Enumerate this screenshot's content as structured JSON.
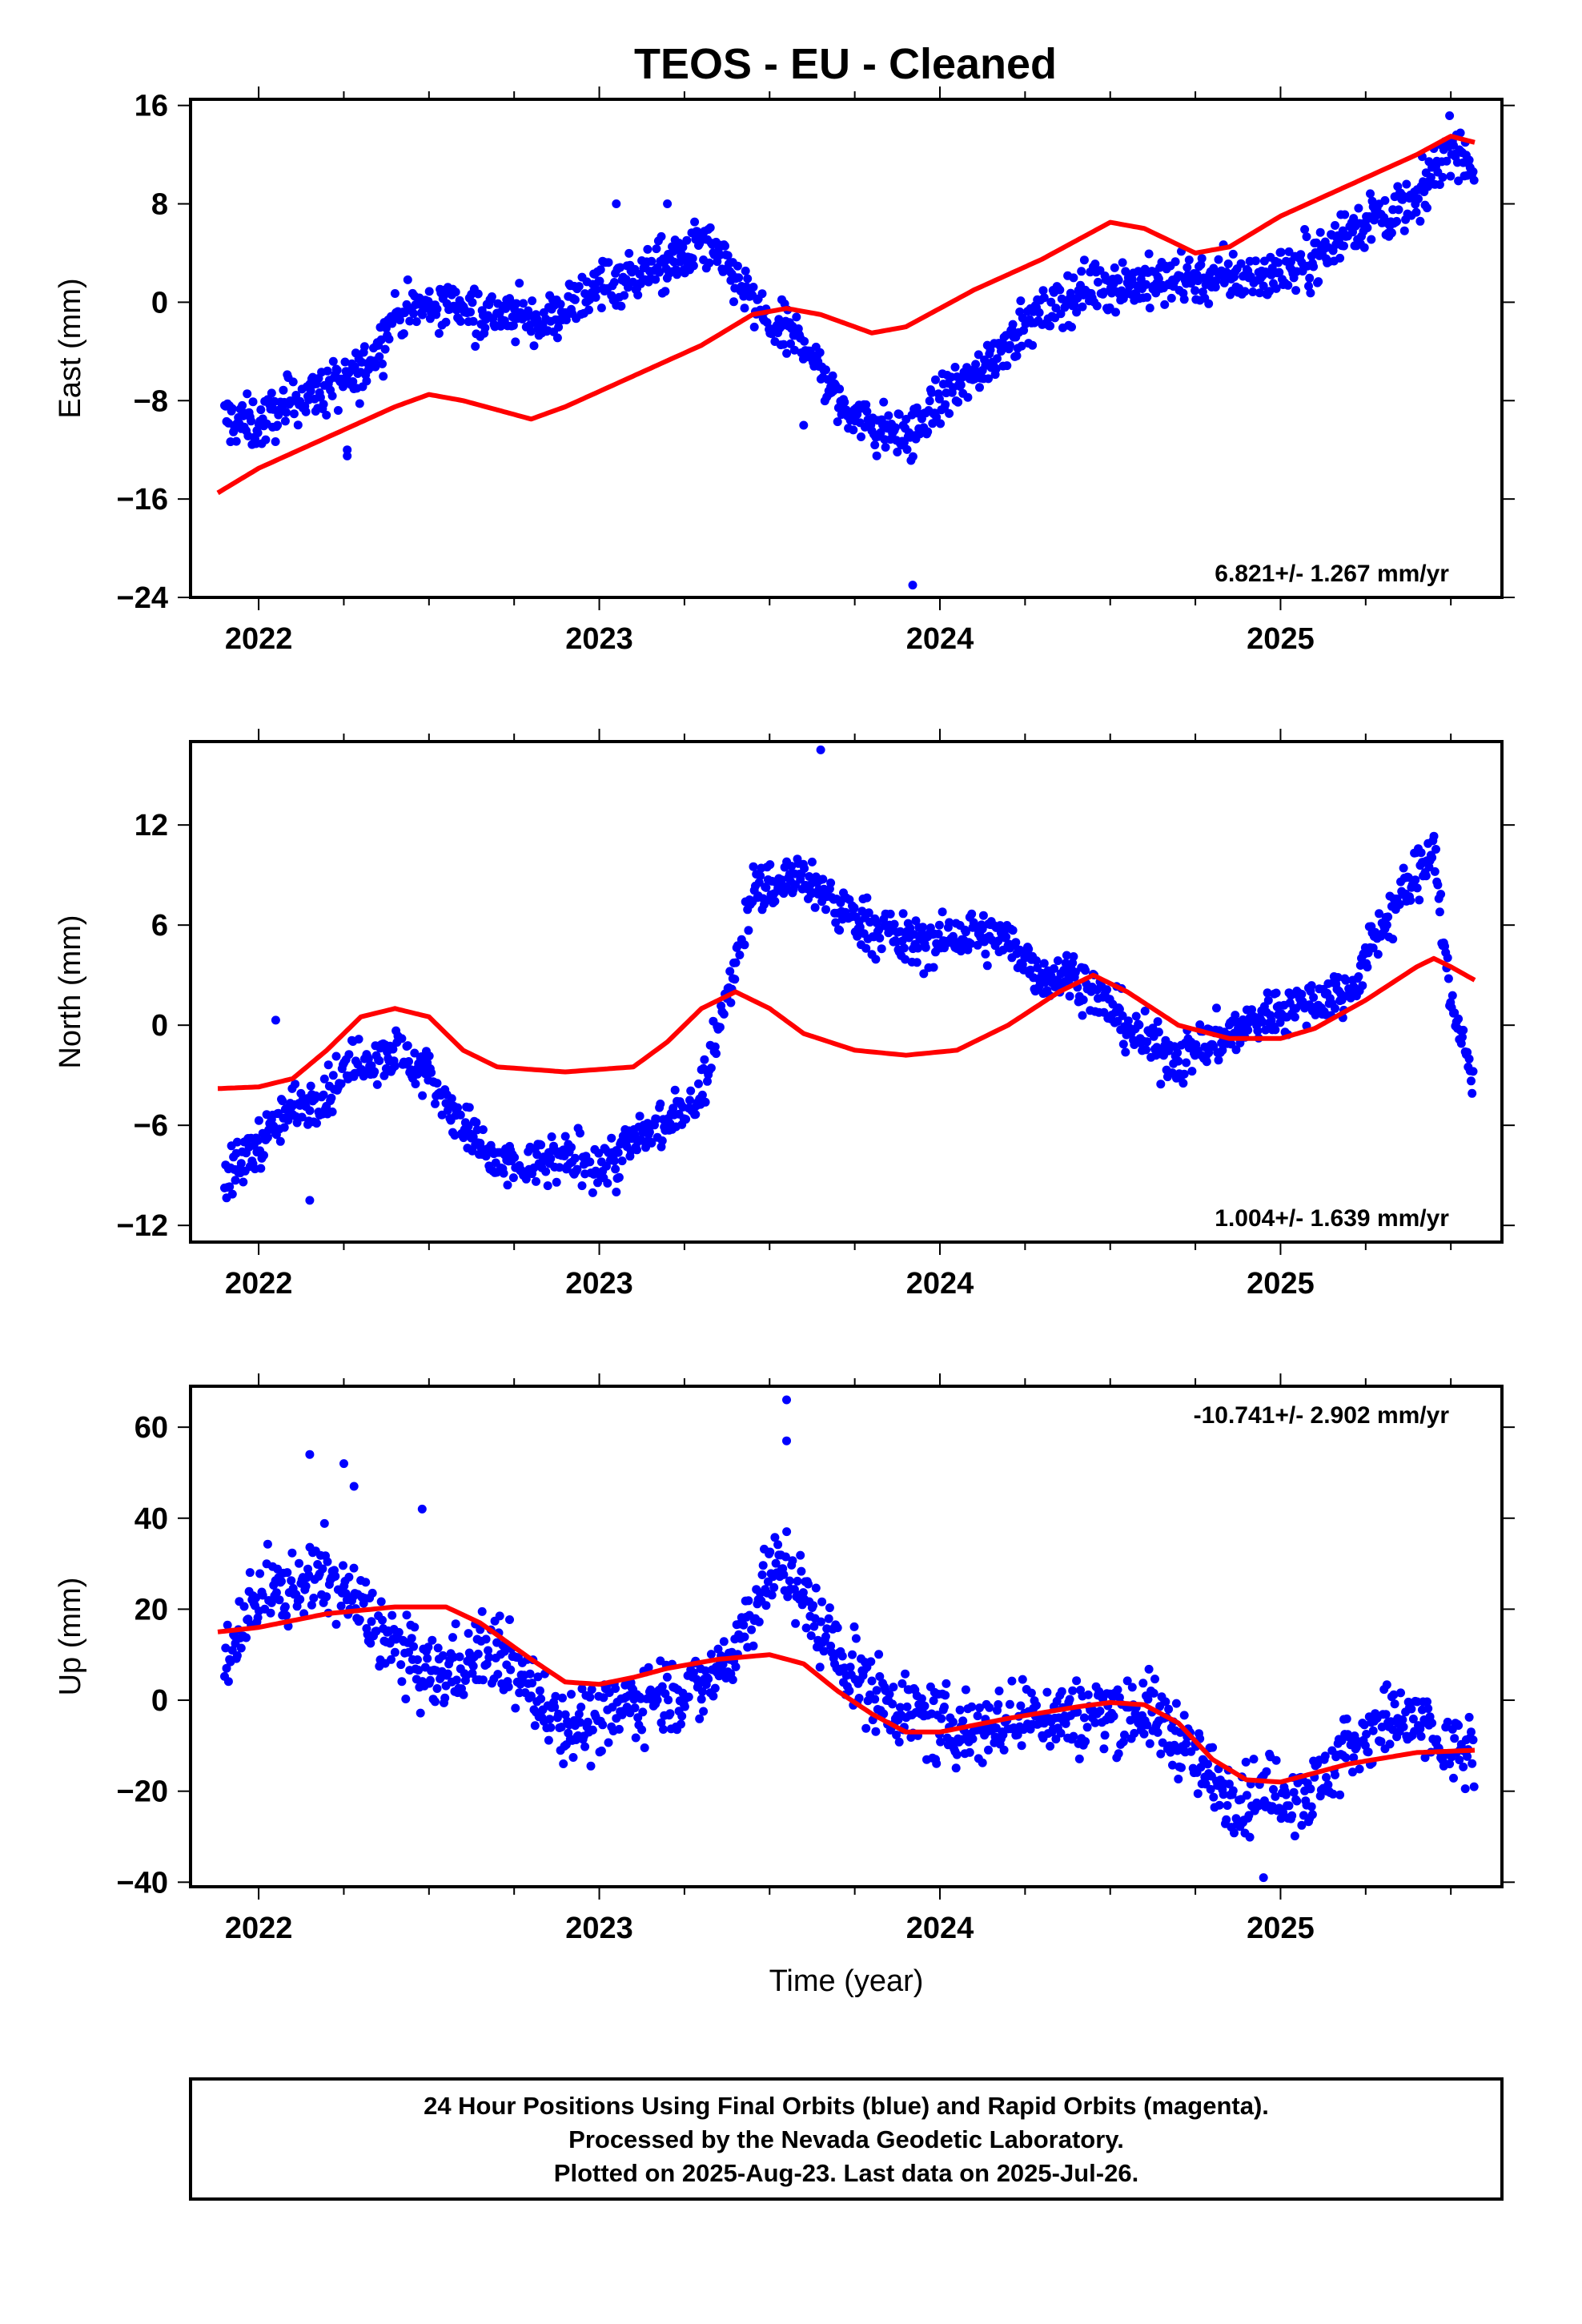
{
  "title": "TEOS  - EU - Cleaned",
  "footer": {
    "lines": [
      "24 Hour Positions Using Final Orbits (blue) and Rapid Orbits (magenta).",
      "Processed by the Nevada Geodetic Laboratory.",
      "Plotted on 2025-Aug-23. Last data on 2025-Jul-26."
    ]
  },
  "colors": {
    "points": "#0000ff",
    "fit": "#ff0000",
    "frame": "#000000"
  },
  "chart_data": [
    {
      "type": "scatter",
      "ylabel": "East (mm)",
      "xlabel": "",
      "xlim": [
        2021.8,
        2025.65
      ],
      "ylim": [
        -24,
        16.5
      ],
      "xticks": [
        2022,
        2023,
        2024,
        2025
      ],
      "xtick_labels": [
        "2022",
        "2023",
        "2024",
        "2025"
      ],
      "yticks": [
        -24,
        -16,
        -8,
        0,
        8,
        16
      ],
      "ytick_labels": [
        "−24",
        "−16",
        "−8",
        "0",
        "8",
        "16"
      ],
      "rate_text": "6.821+/- 1.267 mm/yr",
      "rate_position": "bottom-right",
      "points_trend": [
        [
          2021.9,
          -9.5
        ],
        [
          2022.0,
          -10
        ],
        [
          2022.1,
          -8
        ],
        [
          2022.2,
          -7
        ],
        [
          2022.3,
          -6
        ],
        [
          2022.4,
          -1
        ],
        [
          2022.55,
          0
        ],
        [
          2022.7,
          -1
        ],
        [
          2022.85,
          -1.5
        ],
        [
          2023.0,
          1.5
        ],
        [
          2023.15,
          2.5
        ],
        [
          2023.25,
          3.5
        ],
        [
          2023.3,
          5
        ],
        [
          2023.4,
          2
        ],
        [
          2023.5,
          -2
        ],
        [
          2023.6,
          -3
        ],
        [
          2023.7,
          -8
        ],
        [
          2023.8,
          -10
        ],
        [
          2023.9,
          -11
        ],
        [
          2024.0,
          -8
        ],
        [
          2024.1,
          -6
        ],
        [
          2024.2,
          -3
        ],
        [
          2024.3,
          -1
        ],
        [
          2024.45,
          1.5
        ],
        [
          2024.6,
          1.5
        ],
        [
          2024.75,
          2
        ],
        [
          2024.9,
          2
        ],
        [
          2025.0,
          2.5
        ],
        [
          2025.1,
          3.5
        ],
        [
          2025.2,
          6
        ],
        [
          2025.3,
          7
        ],
        [
          2025.4,
          8
        ],
        [
          2025.5,
          13
        ],
        [
          2025.57,
          11
        ]
      ],
      "points_spread": 1.5,
      "outliers": [
        [
          2022.26,
          -12.5
        ],
        [
          2022.26,
          -12
        ],
        [
          2023.05,
          8
        ],
        [
          2023.2,
          8
        ],
        [
          2023.6,
          -10
        ],
        [
          2023.92,
          -23
        ]
      ],
      "fit": [
        [
          2021.88,
          -15.5
        ],
        [
          2022.0,
          -13.5
        ],
        [
          2022.2,
          -11
        ],
        [
          2022.4,
          -8.5
        ],
        [
          2022.5,
          -7.5
        ],
        [
          2022.6,
          -8
        ],
        [
          2022.8,
          -9.5
        ],
        [
          2022.9,
          -8.5
        ],
        [
          2023.1,
          -6
        ],
        [
          2023.3,
          -3.5
        ],
        [
          2023.45,
          -1
        ],
        [
          2023.55,
          -0.5
        ],
        [
          2023.65,
          -1
        ],
        [
          2023.8,
          -2.5
        ],
        [
          2023.9,
          -2
        ],
        [
          2024.1,
          1
        ],
        [
          2024.3,
          3.5
        ],
        [
          2024.5,
          6.5
        ],
        [
          2024.6,
          6
        ],
        [
          2024.75,
          4
        ],
        [
          2024.85,
          4.5
        ],
        [
          2025.0,
          7
        ],
        [
          2025.2,
          9.5
        ],
        [
          2025.4,
          12
        ],
        [
          2025.5,
          13.5
        ],
        [
          2025.57,
          13
        ]
      ],
      "series": [
        {
          "name": "",
          "kind": "points",
          "color": "#0000ff"
        },
        {
          "name": "",
          "kind": "fit",
          "color": "#ff0000"
        }
      ]
    },
    {
      "type": "scatter",
      "ylabel": "North (mm)",
      "xlabel": "",
      "xlim": [
        2021.8,
        2025.65
      ],
      "ylim": [
        -13,
        17
      ],
      "xticks": [
        2022,
        2023,
        2024,
        2025
      ],
      "xtick_labels": [
        "2022",
        "2023",
        "2024",
        "2025"
      ],
      "yticks": [
        -12,
        -6,
        0,
        6,
        12
      ],
      "ytick_labels": [
        "−12",
        "−6",
        "0",
        "6",
        "12"
      ],
      "rate_text": "1.004+/- 1.639 mm/yr",
      "rate_position": "bottom-right",
      "points_trend": [
        [
          2021.9,
          -9.5
        ],
        [
          2022.0,
          -7
        ],
        [
          2022.1,
          -5
        ],
        [
          2022.2,
          -4
        ],
        [
          2022.3,
          -2
        ],
        [
          2022.4,
          -1.5
        ],
        [
          2022.5,
          -3
        ],
        [
          2022.6,
          -6
        ],
        [
          2022.7,
          -8.5
        ],
        [
          2022.8,
          -8.5
        ],
        [
          2022.9,
          -8
        ],
        [
          2023.0,
          -8.5
        ],
        [
          2023.1,
          -7
        ],
        [
          2023.2,
          -6
        ],
        [
          2023.3,
          -4
        ],
        [
          2023.35,
          0
        ],
        [
          2023.4,
          4
        ],
        [
          2023.45,
          8
        ],
        [
          2023.6,
          9
        ],
        [
          2023.7,
          7
        ],
        [
          2023.8,
          6
        ],
        [
          2023.9,
          5
        ],
        [
          2024.0,
          5
        ],
        [
          2024.1,
          5.5
        ],
        [
          2024.2,
          5
        ],
        [
          2024.3,
          3
        ],
        [
          2024.4,
          3
        ],
        [
          2024.5,
          1
        ],
        [
          2024.6,
          -1
        ],
        [
          2024.7,
          -2
        ],
        [
          2024.8,
          -1
        ],
        [
          2024.9,
          0
        ],
        [
          2025.0,
          1
        ],
        [
          2025.1,
          1.5
        ],
        [
          2025.2,
          2
        ],
        [
          2025.3,
          6
        ],
        [
          2025.4,
          9
        ],
        [
          2025.45,
          11
        ],
        [
          2025.5,
          1
        ],
        [
          2025.55,
          -2
        ],
        [
          2025.57,
          -3
        ]
      ],
      "points_spread": 1.1,
      "outliers": [
        [
          2022.05,
          0.3
        ],
        [
          2022.15,
          -10.5
        ],
        [
          2023.65,
          16.5
        ],
        [
          2023.05,
          -10
        ]
      ],
      "fit": [
        [
          2021.88,
          -3.8
        ],
        [
          2022.0,
          -3.7
        ],
        [
          2022.1,
          -3.2
        ],
        [
          2022.2,
          -1.5
        ],
        [
          2022.3,
          0.5
        ],
        [
          2022.4,
          1
        ],
        [
          2022.5,
          0.5
        ],
        [
          2022.6,
          -1.5
        ],
        [
          2022.7,
          -2.5
        ],
        [
          2022.9,
          -2.8
        ],
        [
          2023.1,
          -2.5
        ],
        [
          2023.2,
          -1
        ],
        [
          2023.3,
          1
        ],
        [
          2023.4,
          2
        ],
        [
          2023.5,
          1
        ],
        [
          2023.6,
          -0.5
        ],
        [
          2023.75,
          -1.5
        ],
        [
          2023.9,
          -1.8
        ],
        [
          2024.05,
          -1.5
        ],
        [
          2024.2,
          0
        ],
        [
          2024.35,
          2
        ],
        [
          2024.45,
          3
        ],
        [
          2024.55,
          2
        ],
        [
          2024.7,
          0
        ],
        [
          2024.85,
          -0.8
        ],
        [
          2025.0,
          -0.8
        ],
        [
          2025.1,
          -0.2
        ],
        [
          2025.25,
          1.5
        ],
        [
          2025.4,
          3.5
        ],
        [
          2025.45,
          4
        ],
        [
          2025.5,
          3.5
        ],
        [
          2025.57,
          2.7
        ]
      ],
      "series": [
        {
          "name": "",
          "kind": "points",
          "color": "#0000ff"
        },
        {
          "name": "",
          "kind": "fit",
          "color": "#ff0000"
        }
      ]
    },
    {
      "type": "scatter",
      "ylabel": "Up (mm)",
      "xlabel": "Time (year)",
      "xlim": [
        2021.8,
        2025.65
      ],
      "ylim": [
        -41,
        69
      ],
      "xticks": [
        2022,
        2023,
        2024,
        2025
      ],
      "xtick_labels": [
        "2022",
        "2023",
        "2024",
        "2025"
      ],
      "yticks": [
        -40,
        -20,
        0,
        20,
        40,
        60
      ],
      "ytick_labels": [
        "−40",
        "−20",
        "0",
        "20",
        "40",
        "60"
      ],
      "rate_text": "-10.741+/- 2.902 mm/yr",
      "rate_position": "top-right",
      "points_trend": [
        [
          2021.9,
          10
        ],
        [
          2022.0,
          22
        ],
        [
          2022.1,
          25
        ],
        [
          2022.2,
          28
        ],
        [
          2022.3,
          20
        ],
        [
          2022.4,
          12
        ],
        [
          2022.5,
          5
        ],
        [
          2022.6,
          8
        ],
        [
          2022.7,
          12
        ],
        [
          2022.8,
          2
        ],
        [
          2022.9,
          -5
        ],
        [
          2023.0,
          -5
        ],
        [
          2023.1,
          0
        ],
        [
          2023.2,
          2
        ],
        [
          2023.3,
          2
        ],
        [
          2023.4,
          12
        ],
        [
          2023.5,
          28
        ],
        [
          2023.55,
          30
        ],
        [
          2023.6,
          22
        ],
        [
          2023.7,
          10
        ],
        [
          2023.8,
          2
        ],
        [
          2023.9,
          -2
        ],
        [
          2024.0,
          -6
        ],
        [
          2024.1,
          -6
        ],
        [
          2024.2,
          -5
        ],
        [
          2024.3,
          -3
        ],
        [
          2024.4,
          -4
        ],
        [
          2024.5,
          -2
        ],
        [
          2024.6,
          -2
        ],
        [
          2024.7,
          -8
        ],
        [
          2024.8,
          -18
        ],
        [
          2024.9,
          -22
        ],
        [
          2025.0,
          -20
        ],
        [
          2025.1,
          -20
        ],
        [
          2025.2,
          -10
        ],
        [
          2025.3,
          -5
        ],
        [
          2025.4,
          -5
        ],
        [
          2025.5,
          -12
        ],
        [
          2025.57,
          -12
        ]
      ],
      "points_spread": 6,
      "outliers": [
        [
          2022.15,
          54
        ],
        [
          2022.25,
          52
        ],
        [
          2022.28,
          47
        ],
        [
          2022.48,
          42
        ],
        [
          2023.55,
          66
        ],
        [
          2023.55,
          57
        ],
        [
          2024.95,
          -39
        ]
      ],
      "fit": [
        [
          2021.88,
          15
        ],
        [
          2022.0,
          16
        ],
        [
          2022.2,
          19
        ],
        [
          2022.4,
          20.5
        ],
        [
          2022.55,
          20.5
        ],
        [
          2022.65,
          17
        ],
        [
          2022.8,
          9
        ],
        [
          2022.9,
          4
        ],
        [
          2023.0,
          3.5
        ],
        [
          2023.1,
          5
        ],
        [
          2023.2,
          7
        ],
        [
          2023.35,
          9
        ],
        [
          2023.5,
          10
        ],
        [
          2023.6,
          8
        ],
        [
          2023.7,
          2
        ],
        [
          2023.8,
          -3
        ],
        [
          2023.9,
          -7
        ],
        [
          2024.0,
          -7
        ],
        [
          2024.2,
          -4
        ],
        [
          2024.4,
          -1.5
        ],
        [
          2024.5,
          -0.5
        ],
        [
          2024.6,
          -1
        ],
        [
          2024.7,
          -5
        ],
        [
          2024.8,
          -13
        ],
        [
          2024.9,
          -17.5
        ],
        [
          2025.0,
          -18
        ],
        [
          2025.2,
          -14
        ],
        [
          2025.4,
          -11.5
        ],
        [
          2025.57,
          -11
        ]
      ],
      "series": [
        {
          "name": "",
          "kind": "points",
          "color": "#0000ff"
        },
        {
          "name": "",
          "kind": "fit",
          "color": "#ff0000"
        }
      ]
    }
  ]
}
